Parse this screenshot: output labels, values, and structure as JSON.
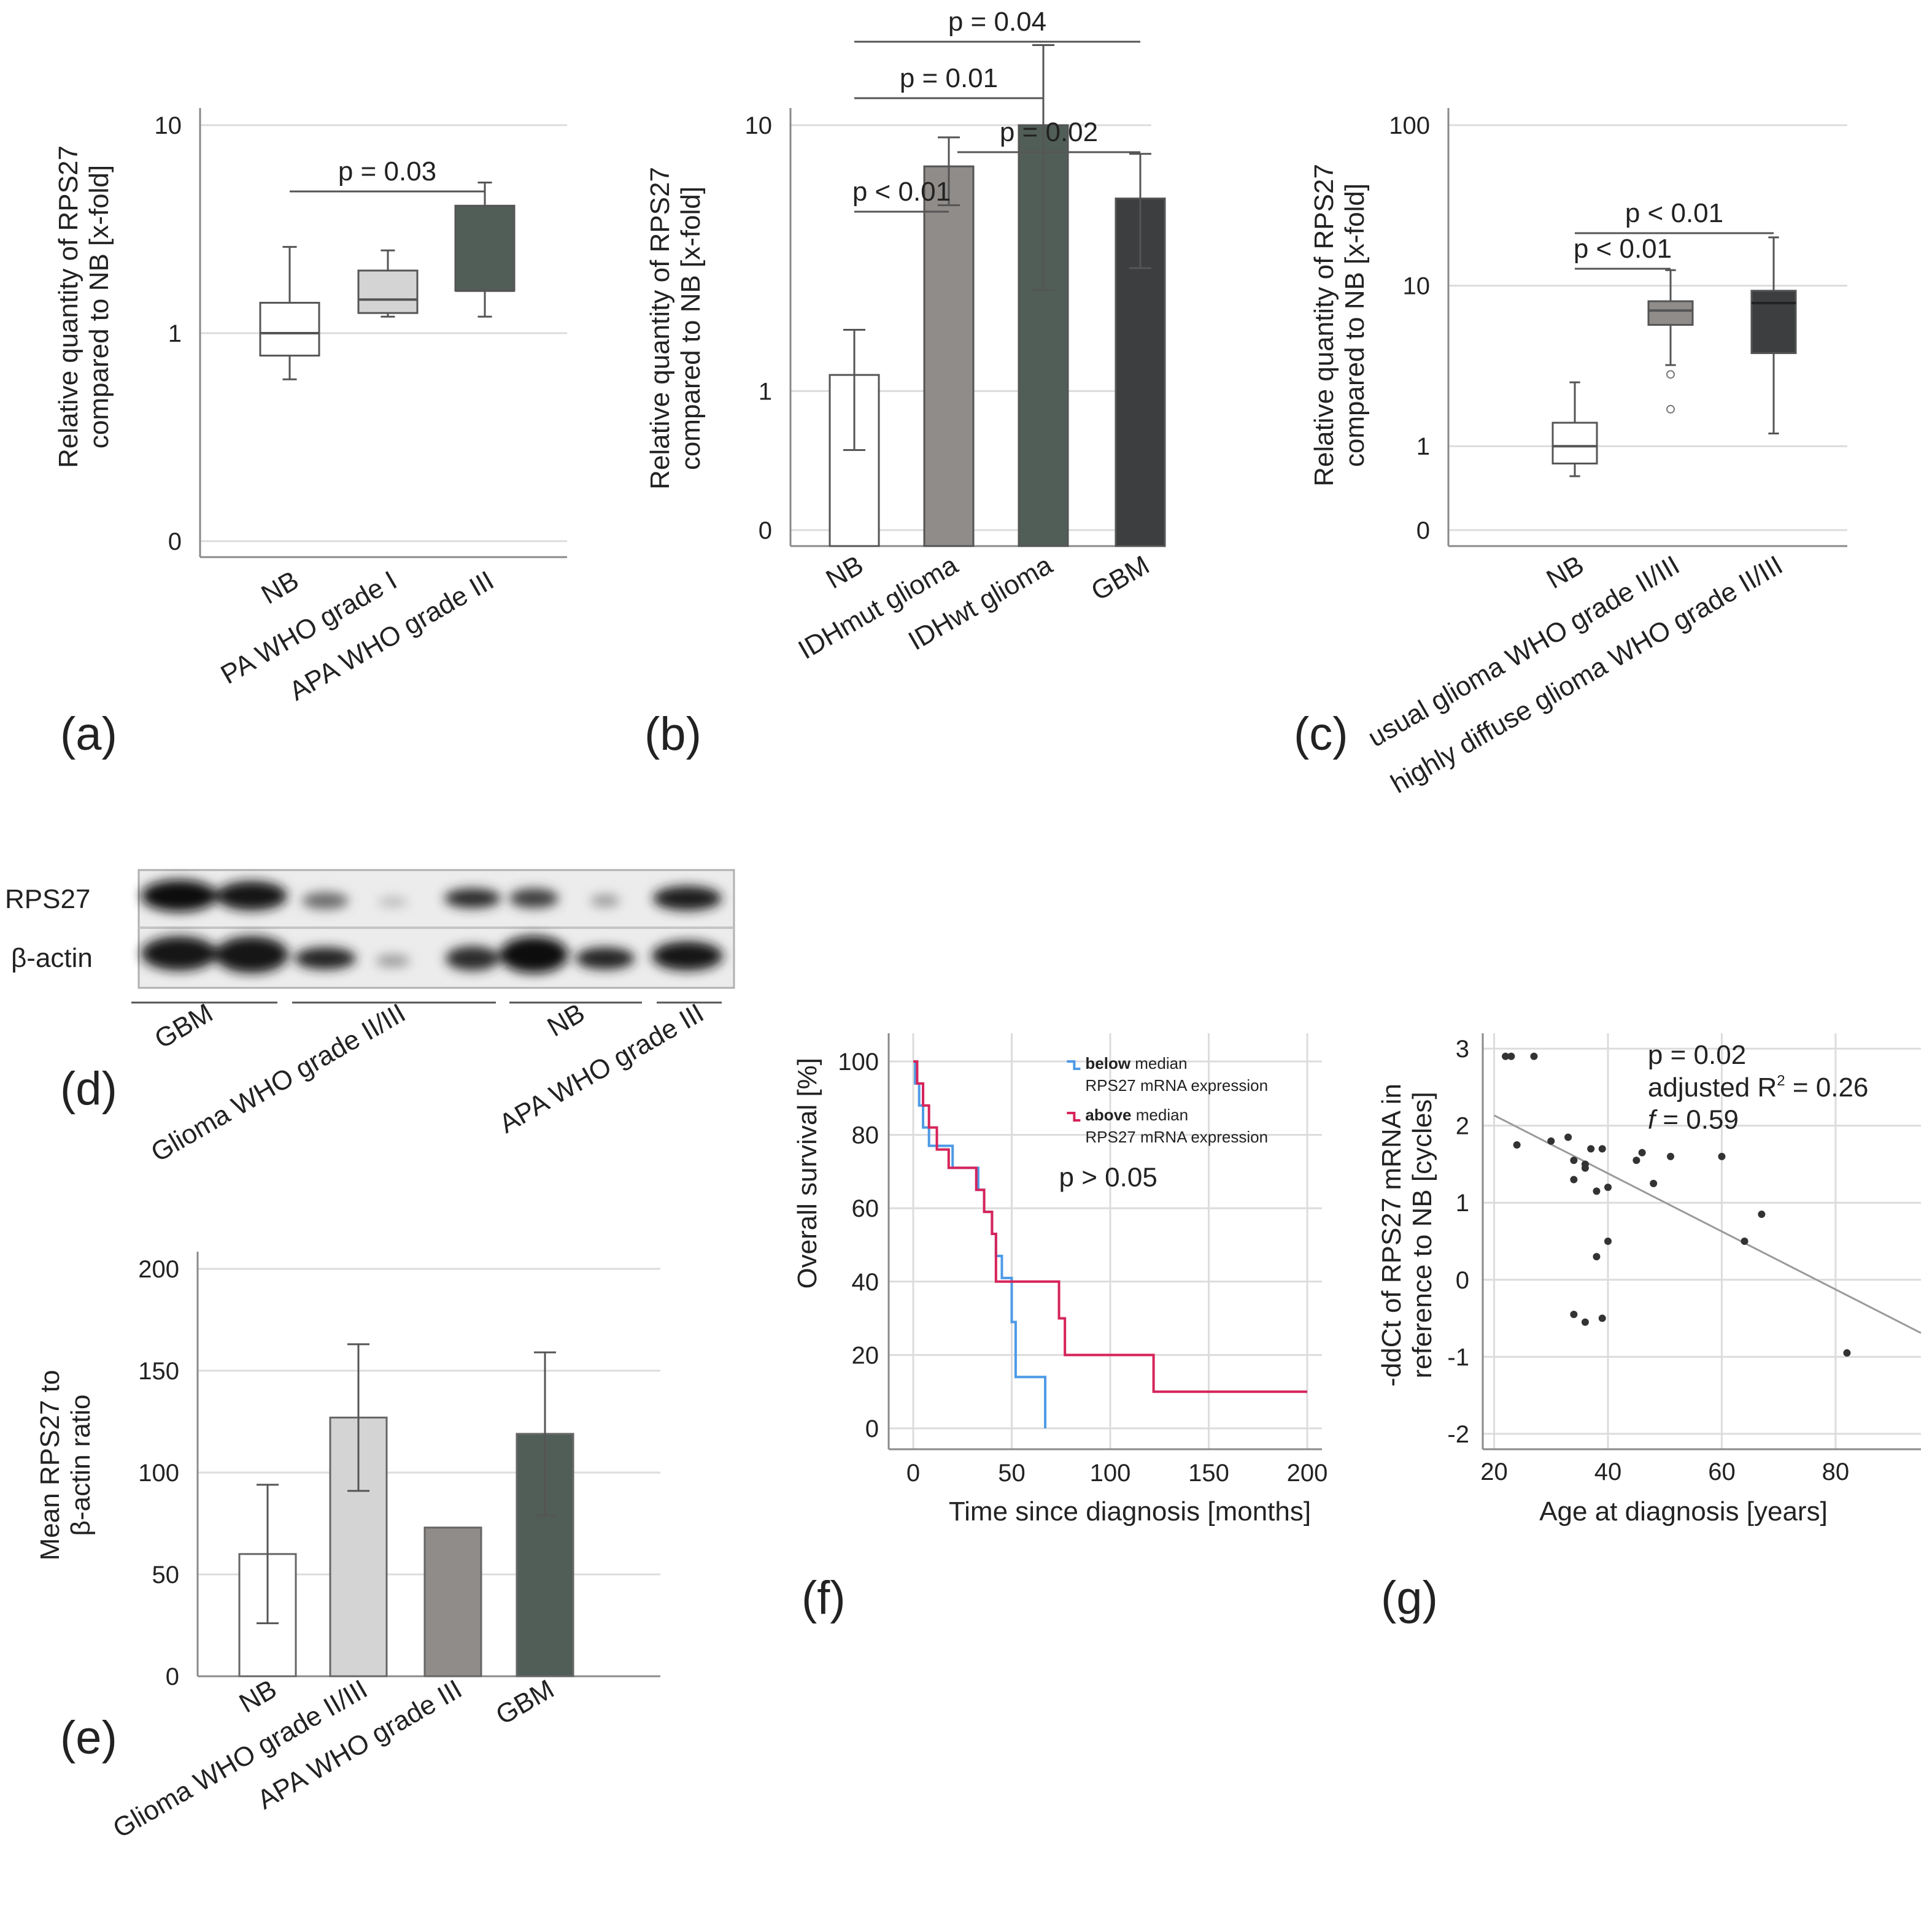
{
  "panel_labels": {
    "a": "(a)",
    "b": "(b)",
    "c": "(c)",
    "d": "(d)",
    "e": "(e)",
    "f": "(f)",
    "g": "(g)"
  },
  "blot": {
    "rows": [
      "RPS27",
      "β-actin"
    ],
    "groups": [
      "GBM",
      "Glioma WHO grade II/III",
      "NB",
      "APA WHO grade III"
    ]
  },
  "chart_data": [
    {
      "id": "a",
      "type": "box",
      "log": true,
      "ylabel": "Relative quantity of RPS27 compared to NB [x-fold]",
      "y_ticks": [
        {
          "v": 0.1,
          "label": "0"
        },
        {
          "v": 1,
          "label": "1"
        },
        {
          "v": 10,
          "label": "10"
        }
      ],
      "categories": [
        "NB",
        "PA WHO grade I",
        "APA WHO grade III"
      ],
      "boxes": [
        {
          "whisker_low": 0.6,
          "q1": 0.78,
          "median": 1.0,
          "q3": 1.4,
          "whisker_high": 2.6,
          "color": "#ffffff"
        },
        {
          "whisker_low": 1.2,
          "q1": 1.25,
          "median": 1.45,
          "q3": 2.0,
          "whisker_high": 2.5,
          "color": "#d4d4d4"
        },
        {
          "whisker_low": 1.2,
          "q1": 1.6,
          "median": 1.6,
          "q3": 4.1,
          "whisker_high": 5.3,
          "color": "#515e58"
        }
      ],
      "comparisons": [
        {
          "from": 0,
          "to": 2,
          "label": "p = 0.03"
        }
      ]
    },
    {
      "id": "b",
      "type": "bar",
      "log": true,
      "ylabel": "Relative quantity of RPS27 compared to NB [x-fold]",
      "y_ticks": [
        {
          "v": 0.3,
          "label": "0"
        },
        {
          "v": 1,
          "label": "1"
        },
        {
          "v": 10,
          "label": "10"
        }
      ],
      "categories": [
        "NB",
        "IDHmut glioma",
        "IDHwt glioma",
        "GBM"
      ],
      "values": [
        1.15,
        7.0,
        10.0,
        5.3
      ],
      "err_low": [
        0.6,
        5.0,
        2.4,
        2.9
      ],
      "err_high": [
        1.7,
        9.0,
        20.0,
        7.8
      ],
      "colors": [
        "#ffffff",
        "#8f8c8a",
        "#515e58",
        "#3c3e3f"
      ],
      "comparisons": [
        {
          "from": 0,
          "to": 1,
          "label": "p < 0.01"
        },
        {
          "from": 1,
          "to": 3,
          "label": "p = 0.02"
        },
        {
          "from": 0,
          "to": 2,
          "label": "p = 0.01"
        },
        {
          "from": 0,
          "to": 3,
          "label": "p = 0.04"
        }
      ]
    },
    {
      "id": "c",
      "type": "box",
      "log": true,
      "ylabel": "Relative quantity of RPS27 compared to NB [x-fold]",
      "y_ticks": [
        {
          "v": 0.3,
          "label": "0"
        },
        {
          "v": 1,
          "label": "1"
        },
        {
          "v": 10,
          "label": "10"
        },
        {
          "v": 100,
          "label": "100"
        }
      ],
      "categories": [
        "NB",
        "usual glioma WHO grade II/III",
        "highly diffuse glioma WHO grade II/III"
      ],
      "boxes": [
        {
          "whisker_low": 0.65,
          "q1": 0.78,
          "median": 1.0,
          "q3": 1.4,
          "whisker_high": 2.5,
          "color": "#ffffff",
          "outliers": []
        },
        {
          "whisker_low": 3.2,
          "q1": 5.7,
          "median": 7.0,
          "q3": 8.0,
          "whisker_high": 12.5,
          "color": "#8f8c8a",
          "outliers": [
            2.8,
            1.7
          ]
        },
        {
          "whisker_low": 1.2,
          "q1": 3.8,
          "median": 7.8,
          "q3": 9.3,
          "whisker_high": 20.0,
          "color": "#3c3e3f",
          "outliers": []
        }
      ],
      "comparisons": [
        {
          "from": 0,
          "to": 1,
          "label": "p < 0.01"
        },
        {
          "from": 0,
          "to": 2,
          "label": "p < 0.01"
        }
      ]
    },
    {
      "id": "e",
      "type": "bar",
      "ylabel": "Mean RPS27 to β-actin ratio",
      "ylim": [
        0,
        200
      ],
      "y_ticks": [
        0,
        50,
        100,
        150,
        200
      ],
      "categories": [
        "NB",
        "Glioma WHO grade II/III",
        "APA WHO grade III",
        "GBM"
      ],
      "values": [
        60,
        127,
        73,
        119
      ],
      "err_low": [
        26,
        91,
        null,
        79
      ],
      "err_high": [
        94,
        163,
        null,
        159
      ],
      "colors": [
        "#ffffff",
        "#d4d4d4",
        "#8f8c8a",
        "#515e58"
      ]
    },
    {
      "id": "f",
      "type": "line",
      "subtype": "kaplan-meier",
      "xlabel": "Time since diagnosis [months]",
      "ylabel": "Overall survival [%]",
      "xlim": [
        0,
        200
      ],
      "ylim": [
        0,
        100
      ],
      "x_ticks": [
        0,
        50,
        100,
        150,
        200
      ],
      "y_ticks": [
        0,
        20,
        40,
        60,
        80,
        100
      ],
      "annotation": "p > 0.05",
      "legend_position": "top-right",
      "series": [
        {
          "bold": "below",
          "rest": "median",
          "line2": "RPS27 mRNA expression",
          "color": "#4e9ae6",
          "points": [
            [
              0,
              100
            ],
            [
              1,
              94
            ],
            [
              3,
              88
            ],
            [
              5,
              82
            ],
            [
              8,
              77
            ],
            [
              20,
              71
            ],
            [
              33,
              65
            ],
            [
              36,
              59
            ],
            [
              40,
              53
            ],
            [
              42,
              47
            ],
            [
              45,
              41
            ],
            [
              50,
              29
            ],
            [
              52,
              14
            ],
            [
              67,
              14
            ],
            [
              67,
              0
            ]
          ]
        },
        {
          "bold": "above",
          "rest": "median",
          "line2": "RPS27 mRNA expression",
          "color": "#d6245a",
          "points": [
            [
              0,
              100
            ],
            [
              2,
              94
            ],
            [
              5,
              88
            ],
            [
              8,
              82
            ],
            [
              12,
              76
            ],
            [
              18,
              71
            ],
            [
              32,
              65
            ],
            [
              36,
              59
            ],
            [
              40,
              53
            ],
            [
              42,
              40
            ],
            [
              74,
              40
            ],
            [
              74,
              30
            ],
            [
              77,
              20
            ],
            [
              122,
              20
            ],
            [
              122,
              10
            ],
            [
              200,
              10
            ]
          ]
        }
      ]
    },
    {
      "id": "g",
      "type": "scatter",
      "xlabel": "Age at diagnosis [years]",
      "ylabel": "-ddCt of RPS27 mRNA in reference to NB [cycles]",
      "xlim": [
        18,
        95
      ],
      "ylim": [
        -2.2,
        3.2
      ],
      "x_ticks": [
        20,
        40,
        60,
        80
      ],
      "y_ticks": [
        -2,
        -1,
        0,
        1,
        2,
        3
      ],
      "annotations": {
        "p": "p = 0.02",
        "r2_prefix": "adjusted R",
        "r2_sup": "2",
        "r2_suffix": " = 0.26",
        "f_name": "f",
        "f_suffix": " = 0.59"
      },
      "regression": {
        "slope": -0.0378,
        "intercept": 2.9
      },
      "points": [
        [
          22,
          2.9
        ],
        [
          23,
          2.9
        ],
        [
          27,
          2.9
        ],
        [
          24,
          1.75
        ],
        [
          30,
          1.8
        ],
        [
          33,
          1.85
        ],
        [
          34,
          1.55
        ],
        [
          34,
          1.3
        ],
        [
          36,
          1.5
        ],
        [
          36,
          1.45
        ],
        [
          37,
          1.7
        ],
        [
          38,
          1.15
        ],
        [
          39,
          1.7
        ],
        [
          40,
          1.2
        ],
        [
          45,
          1.55
        ],
        [
          46,
          1.65
        ],
        [
          48,
          1.25
        ],
        [
          51,
          1.6
        ],
        [
          60,
          1.6
        ],
        [
          38,
          0.3
        ],
        [
          40,
          0.5
        ],
        [
          64,
          0.5
        ],
        [
          67,
          0.85
        ],
        [
          34,
          -0.45
        ],
        [
          36,
          -0.55
        ],
        [
          39,
          -0.5
        ],
        [
          82,
          -0.95
        ]
      ]
    }
  ]
}
